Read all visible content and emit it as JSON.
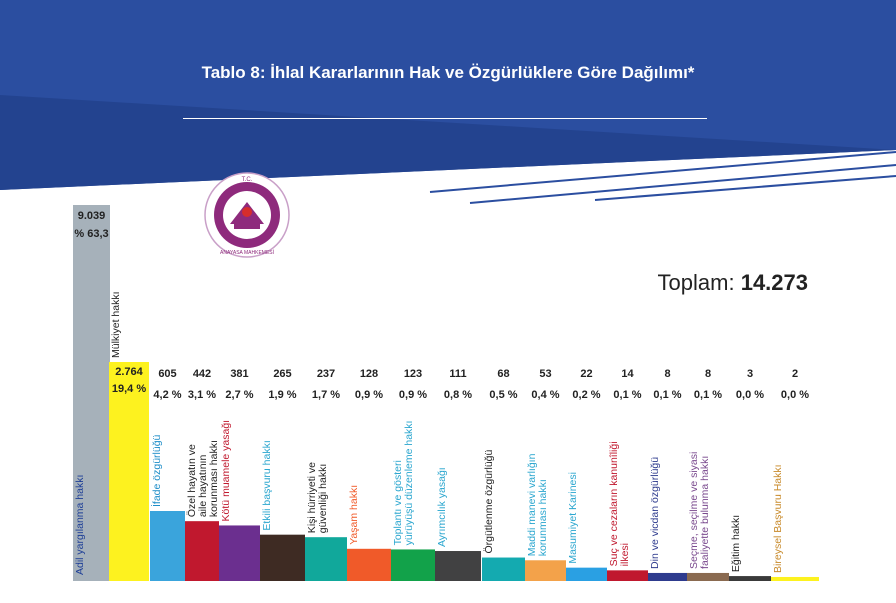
{
  "title": "Tablo 8: İhlal Kararlarının Hak ve Özgürlüklere Göre Dağılımı*",
  "total": {
    "label": "Toplam:",
    "value": "14.273"
  },
  "logo": {
    "top_text": "T.C.",
    "bottom_text": "ANAYASA MAHKEMESİ"
  },
  "colors": {
    "banner": "#2b4ea0",
    "banner_dark": "#23438f"
  },
  "chart_data": {
    "type": "bar",
    "title": "Tablo 8: İhlal Kararlarının Hak ve Özgürlüklere Göre Dağılımı*",
    "xlabel": "",
    "ylabel": "",
    "grid": false,
    "categories": [
      {
        "name": "Adil yargılanma hakkı",
        "value": 9039,
        "value_label": "9.039",
        "pct_label": "% 63,3",
        "color": "#a6b1ba",
        "label_color": "#1e3f97"
      },
      {
        "name": "Mülkiyet hakkı",
        "value": 2764,
        "value_label": "2.764",
        "pct_label": "19,4 %",
        "color": "#fdf21f",
        "label_color": "#222222"
      },
      {
        "name": "İfade özgürlüğü",
        "value": 605,
        "value_label": "605",
        "pct_label": "4,2 %",
        "color": "#3aa4dc",
        "label_color": "#1d8dc8"
      },
      {
        "name": "Özel hayatın ve aile hayatının korunması hakkı",
        "value": 442,
        "value_label": "442",
        "pct_label": "3,1 %",
        "color": "#c0182e",
        "label_color": "#222222"
      },
      {
        "name": "Kötü muamele yasağı",
        "value": 381,
        "value_label": "381",
        "pct_label": "2,7 %",
        "color": "#6b2f8f",
        "label_color": "#c0182e"
      },
      {
        "name": "Etkili başvuru hakkı",
        "value": 265,
        "value_label": "265",
        "pct_label": "1,9 %",
        "color": "#3e2b23",
        "label_color": "#2aa6cf"
      },
      {
        "name": "Kişi hürriyeti ve güvenliği hakkı",
        "value": 237,
        "value_label": "237",
        "pct_label": "1,7 %",
        "color": "#11a89b",
        "label_color": "#222222"
      },
      {
        "name": "Yaşam hakkı",
        "value": 128,
        "value_label": "128",
        "pct_label": "0,9 %",
        "color": "#f05a29",
        "label_color": "#f05a29"
      },
      {
        "name": "Toplantı ve gösteri yürüyüşü düzenleme hakkı",
        "value": 123,
        "value_label": "123",
        "pct_label": "0,9 %",
        "color": "#12a24a",
        "label_color": "#2aa6cf"
      },
      {
        "name": "Ayrımcılık yasağı",
        "value": 111,
        "value_label": "111",
        "pct_label": "0,8 %",
        "color": "#414142",
        "label_color": "#2aa6cf"
      },
      {
        "name": "Örgütlenme özgürlüğü",
        "value": 68,
        "value_label": "68",
        "pct_label": "0,5 %",
        "color": "#14aab0",
        "label_color": "#222222"
      },
      {
        "name": "Maddi manevi varlığın korunması hakkı",
        "value": 53,
        "value_label": "53",
        "pct_label": "0,4 %",
        "color": "#f3a24a",
        "label_color": "#2aa6cf"
      },
      {
        "name": "Masumiyet Karinesi",
        "value": 22,
        "value_label": "22",
        "pct_label": "0,2 %",
        "color": "#2aa0e3",
        "label_color": "#2aa6cf"
      },
      {
        "name": "Suç ve cezaların kanunîliği ilkesi",
        "value": 14,
        "value_label": "14",
        "pct_label": "0,1 %",
        "color": "#c0182e",
        "label_color": "#c0182e"
      },
      {
        "name": "Din ve vicdan özgürlüğü",
        "value": 8,
        "value_label": "8",
        "pct_label": "0,1 %",
        "color": "#2e3b8e",
        "label_color": "#2e3b8e"
      },
      {
        "name": "Seçme, seçilme ve siyasi faaliyette bulunma hakkı",
        "value": 8,
        "value_label": "8",
        "pct_label": "0,1 %",
        "color": "#8a6a50",
        "label_color": "#7a4a8e"
      },
      {
        "name": "Eğitim hakkı",
        "value": 3,
        "value_label": "3",
        "pct_label": "0,0 %",
        "color": "#3a3a3a",
        "label_color": "#222222"
      },
      {
        "name": "Bireysel Başvuru Hakkı",
        "value": 2,
        "value_label": "2",
        "pct_label": "0,0 %",
        "color": "#fdf21f",
        "label_color": "#c88a2a"
      }
    ]
  }
}
